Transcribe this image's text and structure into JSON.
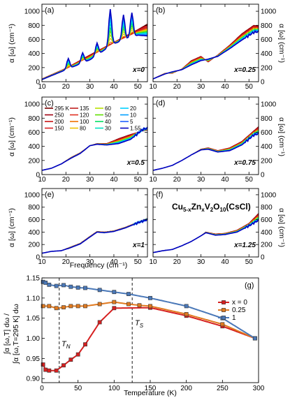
{
  "figure": {
    "formula_prefix": "Cu",
    "formula_sub1": "5-x",
    "formula_zn": "Zn",
    "formula_sub2": "x",
    "formula_v": "V",
    "formula_sub3": "2",
    "formula_o": "O",
    "formula_sub4": "10",
    "formula_suffix": "(CsCl)",
    "ylabel_left": "α [ω] (cm⁻¹)",
    "ylabel_right": "α [ω] (cm⁻¹)",
    "xlabel_freq": "Frequency (cm⁻¹)",
    "xlabel_temp": "Temperature (K)",
    "ylabel_g_top": "∫α [ω,T] dω /",
    "ylabel_g_bottom": "∫α [ω,T=295 K] dω",
    "tn_label": "T",
    "tn_sub": "N",
    "ts_label": "T",
    "ts_sub": "S"
  },
  "chart_data": [
    {
      "type": "line",
      "panel": "(a)",
      "annotation": "x=0",
      "xlim": [
        10,
        54
      ],
      "ylim": [
        0,
        1100
      ],
      "xticks": [
        10,
        20,
        30,
        40,
        50
      ],
      "yticks": [
        0,
        200,
        400,
        600,
        800,
        1000
      ],
      "temperatures_K": [
        295,
        250,
        200,
        150,
        135,
        120,
        100,
        80,
        60,
        50,
        40,
        30,
        20,
        10,
        5,
        1.55
      ],
      "envelope": {
        "x": [
          10,
          20,
          30,
          40,
          50,
          54
        ],
        "high_T": [
          40,
          190,
          380,
          560,
          740,
          820
        ],
        "low_T": [
          30,
          170,
          310,
          540,
          660,
          650
        ]
      },
      "features": [
        {
          "x": 21,
          "y": 330
        },
        {
          "x": 27,
          "y": 410
        },
        {
          "x": 33,
          "y": 550
        },
        {
          "x": 38.5,
          "y": 1030
        },
        {
          "x": 44,
          "y": 950
        },
        {
          "x": 47.5,
          "y": 980
        }
      ]
    },
    {
      "type": "line",
      "panel": "(b)",
      "annotation": "x=0.25",
      "xlim": [
        10,
        54
      ],
      "ylim": [
        0,
        1100
      ],
      "envelope": {
        "x": [
          10,
          15,
          18,
          22,
          26,
          30,
          33,
          37,
          42,
          47,
          52,
          54
        ],
        "high_T": [
          40,
          120,
          120,
          180,
          300,
          360,
          280,
          380,
          520,
          680,
          800,
          790
        ],
        "low_T": [
          40,
          110,
          140,
          170,
          240,
          300,
          320,
          360,
          470,
          590,
          700,
          710
        ]
      }
    },
    {
      "type": "line",
      "panel": "(c)",
      "annotation": "x=0.5",
      "xlim": [
        10,
        54
      ],
      "ylim": [
        0,
        1100
      ],
      "envelope": {
        "x": [
          10,
          14,
          18,
          22,
          26,
          30,
          33,
          37,
          42,
          47,
          52,
          54
        ],
        "high_T": [
          60,
          90,
          150,
          240,
          310,
          410,
          440,
          440,
          510,
          570,
          620,
          630
        ],
        "low_T": [
          60,
          90,
          150,
          230,
          300,
          410,
          430,
          420,
          440,
          500,
          640,
          660
        ]
      }
    },
    {
      "type": "line",
      "panel": "(d)",
      "annotation": "x=0.75",
      "xlim": [
        10,
        54
      ],
      "ylim": [
        0,
        1100
      ],
      "envelope": {
        "x": [
          10,
          14,
          18,
          22,
          26,
          30,
          33,
          37,
          42,
          47,
          52,
          54
        ],
        "high_T": [
          60,
          90,
          130,
          200,
          280,
          360,
          380,
          340,
          380,
          470,
          620,
          680
        ],
        "low_T": [
          60,
          90,
          130,
          200,
          280,
          350,
          360,
          320,
          340,
          420,
          560,
          580
        ]
      }
    },
    {
      "type": "line",
      "panel": "(e)",
      "annotation": "x=1",
      "xlim": [
        10,
        54
      ],
      "ylim": [
        0,
        1100
      ],
      "envelope": {
        "x": [
          10,
          14,
          18,
          22,
          26,
          30,
          33,
          36,
          40,
          45,
          50,
          54
        ],
        "high_T": [
          60,
          90,
          100,
          160,
          220,
          330,
          410,
          400,
          420,
          480,
          560,
          620
        ],
        "low_T": [
          60,
          90,
          100,
          150,
          210,
          320,
          400,
          390,
          410,
          470,
          550,
          600
        ]
      }
    },
    {
      "type": "line",
      "panel": "(f)",
      "annotation": "x=1.25",
      "xlim": [
        10,
        54
      ],
      "ylim": [
        0,
        1100
      ],
      "envelope": {
        "x": [
          10,
          14,
          18,
          22,
          26,
          30,
          32,
          36,
          40,
          45,
          50,
          54
        ],
        "high_T": [
          70,
          100,
          120,
          180,
          250,
          340,
          400,
          370,
          380,
          430,
          540,
          700
        ],
        "low_T": [
          70,
          100,
          120,
          180,
          250,
          340,
          390,
          350,
          360,
          400,
          500,
          590
        ]
      }
    },
    {
      "type": "line",
      "panel": "(g)",
      "xlim": [
        0,
        300
      ],
      "ylim": [
        0.89,
        1.15
      ],
      "xticks": [
        0,
        50,
        100,
        150,
        200,
        250,
        300
      ],
      "yticks": [
        0.9,
        0.95,
        1.0,
        1.05,
        1.1,
        1.15
      ],
      "vlines": [
        {
          "x": 24,
          "label": "TN"
        },
        {
          "x": 125,
          "label": "TS"
        }
      ],
      "series": [
        {
          "name": "x = 0",
          "color": "#d62020",
          "x": [
            1.55,
            5,
            10,
            20,
            30,
            40,
            50,
            60,
            80,
            100,
            150,
            200,
            250,
            295
          ],
          "y": [
            0.935,
            0.922,
            0.92,
            0.92,
            0.933,
            0.947,
            0.96,
            0.985,
            1.04,
            1.075,
            1.076,
            1.056,
            1.03,
            1.0
          ]
        },
        {
          "name": "0.25",
          "color": "#e07a20",
          "x": [
            1.55,
            10,
            20,
            30,
            40,
            50,
            60,
            80,
            100,
            120,
            135,
            150,
            200,
            250,
            295
          ],
          "y": [
            1.08,
            1.08,
            1.075,
            1.077,
            1.08,
            1.08,
            1.08,
            1.085,
            1.09,
            1.085,
            1.082,
            1.08,
            1.06,
            1.035,
            1.0
          ]
        },
        {
          "name": "1",
          "color": "#4a78b8",
          "x": [
            1.55,
            5,
            10,
            20,
            30,
            40,
            50,
            60,
            80,
            100,
            120,
            150,
            200,
            250,
            295
          ],
          "y": [
            1.14,
            1.138,
            1.133,
            1.13,
            1.132,
            1.128,
            1.126,
            1.125,
            1.12,
            1.115,
            1.11,
            1.1,
            1.08,
            1.05,
            1.0
          ]
        }
      ],
      "legend": "right"
    }
  ],
  "legend_c": {
    "entries": [
      "295 K",
      "135",
      "60",
      "20",
      "250",
      "120",
      "50",
      "10",
      "200",
      "100",
      "40",
      "5",
      "150",
      "80",
      "30",
      "1.55"
    ],
    "colors": [
      "#7a0000",
      "#c02020",
      "#b8e000",
      "#00d0ff",
      "#a00010",
      "#e03020",
      "#60e000",
      "#00a0ff",
      "#c81010",
      "#f07000",
      "#00e060",
      "#2060ff",
      "#d82020",
      "#f0c000",
      "#00e0c0",
      "#0000c0"
    ]
  }
}
